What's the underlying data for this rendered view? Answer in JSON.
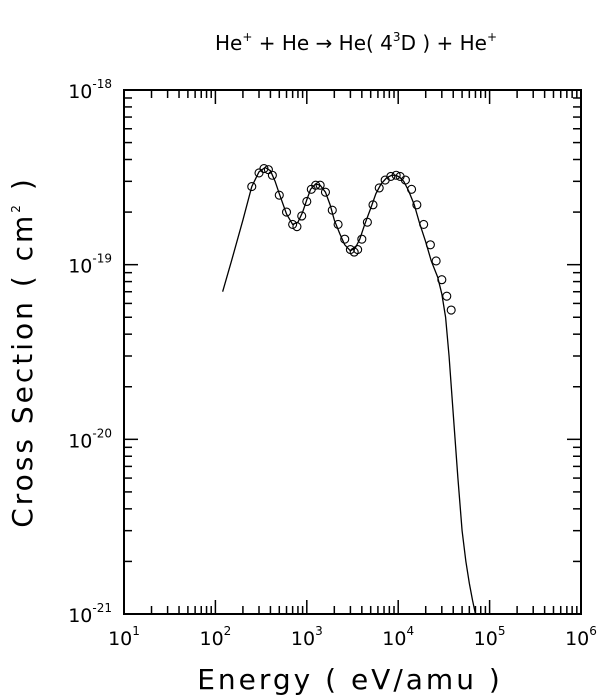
{
  "chart_data": {
    "type": "line",
    "title": {
      "parts": [
        {
          "text": "He",
          "sup": "+"
        },
        {
          "text": " + He → He( 4",
          "sup": "3"
        },
        {
          "text": "D ) + He",
          "sup": "+"
        }
      ]
    },
    "xlabel": "Energy ( eV/amu )",
    "ylabel": {
      "before": "Cross Section ( cm",
      "sup": "2",
      "after": " )"
    },
    "xscale": "log",
    "yscale": "log",
    "xlim": [
      10,
      1000000
    ],
    "ylim": [
      1e-21,
      1e-18
    ],
    "x_ticks": [
      {
        "base": "10",
        "exp": "1"
      },
      {
        "base": "10",
        "exp": "2"
      },
      {
        "base": "10",
        "exp": "3"
      },
      {
        "base": "10",
        "exp": "4"
      },
      {
        "base": "10",
        "exp": "5"
      },
      {
        "base": "10",
        "exp": "6"
      }
    ],
    "y_ticks": [
      {
        "base": "10",
        "exp": "-21"
      },
      {
        "base": "10",
        "exp": "-20"
      },
      {
        "base": "10",
        "exp": "-19"
      },
      {
        "base": "10",
        "exp": "-18"
      }
    ],
    "grid": false,
    "series": [
      {
        "style": "line",
        "x": [
          120,
          150,
          200,
          250,
          300,
          350,
          400,
          450,
          500,
          600,
          700,
          800,
          900,
          1000,
          1100,
          1250,
          1400,
          1600,
          1800,
          2000,
          2300,
          2600,
          3000,
          3400,
          3800,
          4300,
          5000,
          5700,
          6500,
          7500,
          8500,
          9500,
          10500,
          11500,
          13000,
          15000,
          17000,
          20000,
          23000,
          27000,
          30000,
          33000,
          36000,
          40000,
          45000,
          50000,
          55000,
          60000,
          65000,
          70000
        ],
        "y": [
          7e-20,
          1.05e-19,
          1.8e-19,
          2.8e-19,
          3.4e-19,
          3.6e-19,
          3.45e-19,
          3e-19,
          2.55e-19,
          1.95e-19,
          1.7e-19,
          1.75e-19,
          2e-19,
          2.35e-19,
          2.7e-19,
          2.9e-19,
          2.85e-19,
          2.6e-19,
          2.2e-19,
          1.8e-19,
          1.5e-19,
          1.3e-19,
          1.2e-19,
          1.25e-19,
          1.4e-19,
          1.7e-19,
          2.1e-19,
          2.55e-19,
          2.9e-19,
          3.15e-19,
          3.25e-19,
          3.25e-19,
          3.15e-19,
          3e-19,
          2.65e-19,
          2.2e-19,
          1.75e-19,
          1.35e-19,
          1.05e-19,
          8.5e-20,
          6.8e-20,
          5e-20,
          3e-20,
          1.4e-20,
          6e-21,
          3e-21,
          2e-21,
          1.5e-21,
          1.2e-21,
          1e-21
        ]
      },
      {
        "style": "markers",
        "marker": "circle",
        "x": [
          250,
          300,
          340,
          380,
          420,
          500,
          600,
          700,
          780,
          880,
          1000,
          1120,
          1250,
          1400,
          1600,
          1900,
          2200,
          2600,
          3000,
          3300,
          3600,
          4000,
          4600,
          5300,
          6200,
          7200,
          8300,
          9500,
          10500,
          12000,
          14000,
          16000,
          19000,
          22500,
          26000,
          30000,
          34000,
          38000
        ],
        "y": [
          2.8e-19,
          3.35e-19,
          3.55e-19,
          3.5e-19,
          3.25e-19,
          2.5e-19,
          2e-19,
          1.7e-19,
          1.65e-19,
          1.9e-19,
          2.3e-19,
          2.7e-19,
          2.85e-19,
          2.85e-19,
          2.6e-19,
          2.05e-19,
          1.7e-19,
          1.4e-19,
          1.22e-19,
          1.18e-19,
          1.22e-19,
          1.4e-19,
          1.75e-19,
          2.2e-19,
          2.75e-19,
          3.05e-19,
          3.2e-19,
          3.25e-19,
          3.2e-19,
          3.05e-19,
          2.7e-19,
          2.2e-19,
          1.7e-19,
          1.3e-19,
          1.05e-19,
          8.2e-20,
          6.6e-20,
          5.5e-20
        ]
      }
    ]
  }
}
